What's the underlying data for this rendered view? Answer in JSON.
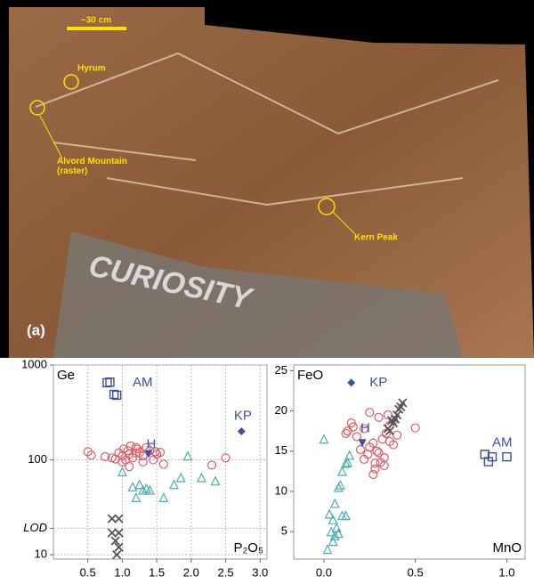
{
  "image_labels": {
    "scale": "~30 cm",
    "hyrum": "Hyrum",
    "alvord": "Alvord Mountain (raster)",
    "kern": "Kern Peak",
    "panel": "(a)",
    "rover": "CURIOSITY"
  },
  "chart_data": [
    {
      "type": "scatter",
      "ylabel": "Ge",
      "xlabel": "P₂O₅",
      "yscale": "log",
      "grid": true,
      "xlim": [
        0,
        3.1
      ],
      "ylim": [
        9,
        1000
      ],
      "xticks": [
        0.5,
        {
          "value": 1.0,
          "label": "1.0"
        },
        1.5,
        {
          "value": 2.0,
          "label": "2.0"
        },
        2.5,
        {
          "value": 3.0,
          "label": "3.0"
        }
      ],
      "yticks": [
        10,
        100,
        1000,
        {
          "value": 19,
          "label": "LOD"
        }
      ],
      "series": [
        {
          "marker": "circle",
          "color": "#e05a66",
          "x": [
            0.5,
            0.55,
            0.75,
            0.85,
            0.9,
            0.95,
            1.0,
            1.02,
            1.05,
            1.08,
            1.1,
            1.12,
            1.15,
            1.2,
            1.22,
            1.25,
            1.3,
            1.35,
            1.4,
            1.45,
            1.5,
            1.55,
            1.6,
            1.0,
            1.1,
            1.2,
            1.3,
            1.48,
            2.3,
            2.5
          ],
          "values": [
            122,
            112,
            108,
            105,
            102,
            118,
            110,
            130,
            100,
            125,
            115,
            140,
            105,
            118,
            130,
            120,
            110,
            135,
            125,
            100,
            115,
            120,
            90,
            95,
            85,
            135,
            95,
            122,
            88,
            105
          ]
        },
        {
          "marker": "triangle",
          "color": "#4aaeb0",
          "x": [
            1.0,
            1.15,
            1.25,
            1.3,
            1.35,
            1.2,
            1.6,
            1.75,
            1.85,
            1.95,
            2.15,
            2.35,
            1.4
          ],
          "values": [
            75,
            52,
            55,
            48,
            50,
            40,
            40,
            55,
            65,
            110,
            65,
            60,
            48
          ]
        },
        {
          "marker": "x",
          "color": "#555555",
          "x": [
            0.85,
            0.95,
            0.85,
            0.95,
            0.9,
            0.95,
            0.92
          ],
          "values": [
            24,
            24,
            17,
            17,
            14,
            12,
            10
          ]
        },
        {
          "marker": "square",
          "color": "#3b4fa3",
          "x": [
            0.78,
            0.82,
            0.92,
            0.88
          ],
          "values": [
            650,
            660,
            480,
            490
          ]
        },
        {
          "marker": "diamond",
          "color": "#3b4fa3",
          "x": [
            2.73
          ],
          "values": [
            200
          ]
        },
        {
          "marker": "tri-down",
          "color": "#3b4fa3",
          "x": [
            1.38
          ],
          "values": [
            115
          ]
        }
      ],
      "annotations": [
        {
          "text": "AM",
          "x": 1.15,
          "y": 650
        },
        {
          "text": "KP",
          "x": 2.62,
          "y": 290
        },
        {
          "text": "H",
          "x": 1.35,
          "y": 145
        }
      ]
    },
    {
      "type": "scatter",
      "ylabel": "FeO",
      "xlabel": "MnO",
      "grid": false,
      "xlim": [
        -0.165,
        1.1
      ],
      "ylim": [
        1.6,
        25.7
      ],
      "xticks": [
        {
          "value": 0,
          "label": "0.0"
        },
        0.5,
        {
          "value": 1,
          "label": "1.0"
        }
      ],
      "yticks": [
        5,
        10,
        15,
        20,
        25
      ],
      "series": [
        {
          "marker": "circle",
          "color": "#e05a66",
          "x": [
            0.12,
            0.15,
            0.13,
            0.18,
            0.2,
            0.22,
            0.25,
            0.27,
            0.28,
            0.3,
            0.32,
            0.33,
            0.35,
            0.36,
            0.38,
            0.4,
            0.3,
            0.25,
            0.28,
            0.33,
            0.36,
            0.22,
            0.27,
            0.31,
            0.5,
            0.16,
            0.24,
            0.29,
            0.34,
            0.38
          ],
          "values": [
            17.2,
            18.5,
            17.5,
            16.8,
            15.2,
            14.0,
            19.8,
            12.1,
            13.5,
            14.8,
            16.5,
            13.2,
            19.5,
            18.2,
            15.8,
            17.0,
            19.2,
            15.5,
            12.8,
            14.2,
            16.2,
            17.8,
            16.0,
            13.6,
            17.9,
            18.0,
            14.6,
            15.0,
            17.2,
            18.8
          ]
        },
        {
          "marker": "triangle",
          "color": "#4aaeb0",
          "x": [
            0.0,
            0.12,
            0.13,
            0.14,
            0.1,
            0.08,
            0.09,
            0.03,
            0.05,
            0.1,
            0.04,
            0.06,
            0.07,
            0.02,
            0.05,
            0.08,
            0.06,
            0.12
          ],
          "values": [
            16.5,
            13.5,
            13.6,
            14.5,
            12.5,
            10.5,
            10.8,
            7.2,
            6.5,
            7.0,
            5.0,
            4.5,
            5.5,
            2.8,
            3.8,
            4.8,
            8.5,
            7.0
          ]
        },
        {
          "marker": "x",
          "color": "#555555",
          "x": [
            0.35,
            0.38,
            0.4,
            0.42,
            0.43,
            0.39,
            0.41,
            0.37,
            0.36
          ],
          "values": [
            17.8,
            18.5,
            19.5,
            20.5,
            21,
            19,
            20.2,
            18.8,
            17.5
          ]
        },
        {
          "marker": "square",
          "color": "#3b4fa3",
          "x": [
            0.88,
            0.9,
            0.92,
            1.0
          ],
          "values": [
            14.6,
            13.7,
            14.3,
            14.3
          ]
        },
        {
          "marker": "diamond",
          "color": "#3b4fa3",
          "x": [
            0.15
          ],
          "values": [
            23.5
          ]
        },
        {
          "marker": "tri-down",
          "color": "#3b4fa3",
          "x": [
            0.21
          ],
          "values": [
            16
          ]
        }
      ],
      "annotations": [
        {
          "text": "KP",
          "x": 0.25,
          "y": 23.5
        },
        {
          "text": "H",
          "x": 0.2,
          "y": 17.8
        },
        {
          "text": "AM",
          "x": 0.92,
          "y": 16
        }
      ]
    }
  ]
}
